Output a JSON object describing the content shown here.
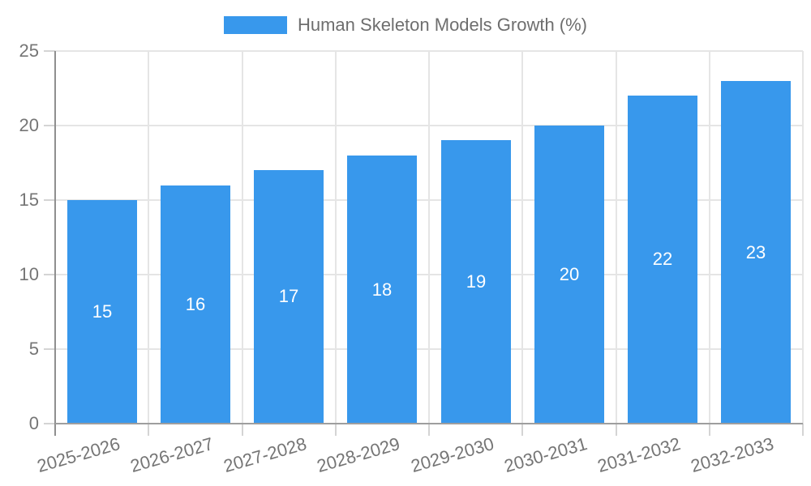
{
  "legend": {
    "swatch_color": "#3898EC"
  },
  "chart_data": {
    "type": "bar",
    "title": "",
    "categories": [
      "2025-2026",
      "2026-2027",
      "2027-2028",
      "2028-2029",
      "2029-2030",
      "2030-2031",
      "2031-2032",
      "2032-2033"
    ],
    "series": [
      {
        "name": "Human Skeleton Models Growth (%)",
        "values": [
          15,
          16,
          17,
          18,
          19,
          20,
          22,
          23
        ],
        "color": "#3898EC"
      }
    ],
    "xlabel": "",
    "ylabel": "",
    "ylim": [
      0,
      25
    ],
    "yticks": [
      0,
      5,
      10,
      15,
      20,
      25
    ],
    "grid": true,
    "legend_position": "top",
    "value_labels_position": "inside-center",
    "value_label_color": "#ffffff",
    "axis_text_color": "#757575",
    "gridline_color": "#e5e5e5"
  }
}
